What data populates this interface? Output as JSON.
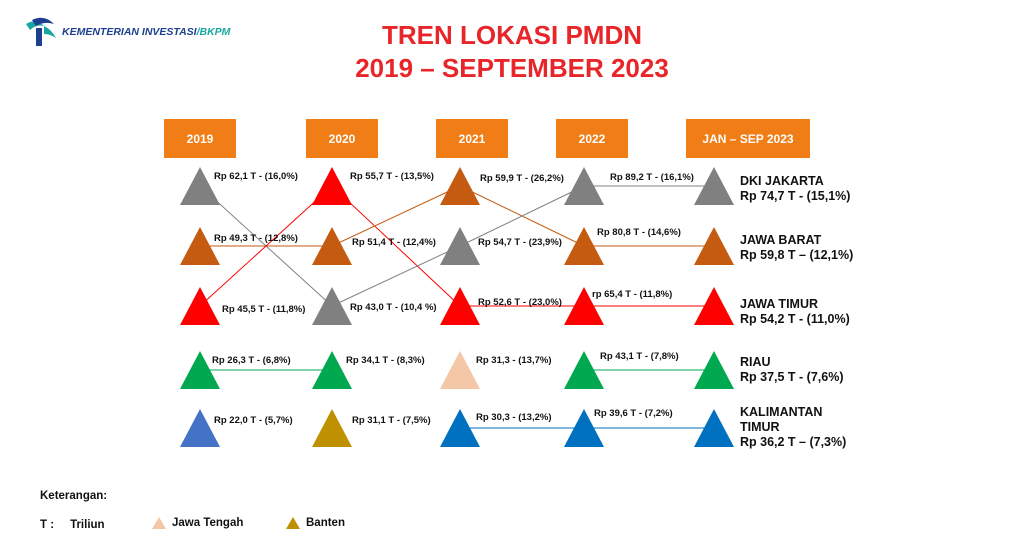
{
  "logo": {
    "name": "KEMENTERIAN INVESTASI",
    "suffix": "/BKPM"
  },
  "title": {
    "line1": "TREN LOKASI PMDN",
    "line2": "2019 – SEPTEMBER 2023"
  },
  "years": [
    "2019",
    "2020",
    "2021",
    "2022",
    "JAN – SEP 2023"
  ],
  "colors": {
    "dki": "#808080",
    "jabar": "#c55a11",
    "jatim": "#ff0000",
    "riau": "#00a94f",
    "kaltim": "#0070c0",
    "sulsel": "#4472c4",
    "banten": "#bf9000",
    "jateng": "#f4c7a6"
  },
  "columns": [
    [
      {
        "region": "dki",
        "label": "Rp 62,1 T - (16,0%)"
      },
      {
        "region": "jabar",
        "label": "Rp 49,3 T - (12,8%)"
      },
      {
        "region": "jatim",
        "label": "Rp 45,5 T - (11,8%)"
      },
      {
        "region": "riau",
        "label": "Rp 26,3 T - (6,8%)"
      },
      {
        "region": "sulsel",
        "label": "Rp 22,0  T - (5,7%)"
      }
    ],
    [
      {
        "region": "jatim",
        "label": "Rp 55,7 T - (13,5%)"
      },
      {
        "region": "jabar",
        "label": "Rp 51,4 T - (12,4%)"
      },
      {
        "region": "dki",
        "label": "Rp 43,0 T - (10,4 %)"
      },
      {
        "region": "riau",
        "label": "Rp 34,1 T - (8,3%)"
      },
      {
        "region": "banten",
        "label": "Rp 31,1 T - (7,5%)"
      }
    ],
    [
      {
        "region": "jabar",
        "label": "Rp 59,9 T - (26,2%)"
      },
      {
        "region": "dki",
        "label": "Rp  54,7 T - (23,9%)"
      },
      {
        "region": "jatim",
        "label": "Rp 52,6 T - (23,0%)"
      },
      {
        "region": "jateng",
        "label": "Rp 31,3 - (13,7%)"
      },
      {
        "region": "kaltim",
        "label": "Rp 30,3 - (13,2%)"
      }
    ],
    [
      {
        "region": "dki",
        "label": "Rp 89,2 T - (16,1%)"
      },
      {
        "region": "jabar",
        "label": "Rp 80,8 T - (14,6%)"
      },
      {
        "region": "jatim",
        "label": "rp 65,4  T - (11,8%)"
      },
      {
        "region": "riau",
        "label": "Rp 43,1 T - (7,8%)"
      },
      {
        "region": "kaltim",
        "label": "Rp 39,6 T - (7,2%)"
      }
    ],
    [
      {
        "region": "dki",
        "name": "DKI JAKARTA",
        "value": "Rp 74,7 T - (15,1%)"
      },
      {
        "region": "jabar",
        "name": "JAWA BARAT",
        "value": "Rp 59,8 T – (12,1%)"
      },
      {
        "region": "jatim",
        "name": "JAWA TIMUR",
        "value": "Rp 54,2 T - (11,0%)"
      },
      {
        "region": "riau",
        "name": "RIAU",
        "value": "Rp 37,5 T - (7,6%)"
      },
      {
        "region": "kaltim",
        "name": "KALIMANTAN TIMUR",
        "value": "Rp 36,2 T – (7,3%)"
      }
    ]
  ],
  "legend": {
    "title": "Keterangan:",
    "t_symbol": "T :",
    "t_meaning": "Triliun",
    "items": [
      {
        "region": "jateng",
        "label": "Jawa Tengah"
      },
      {
        "region": "banten",
        "label": "Banten"
      }
    ]
  }
}
